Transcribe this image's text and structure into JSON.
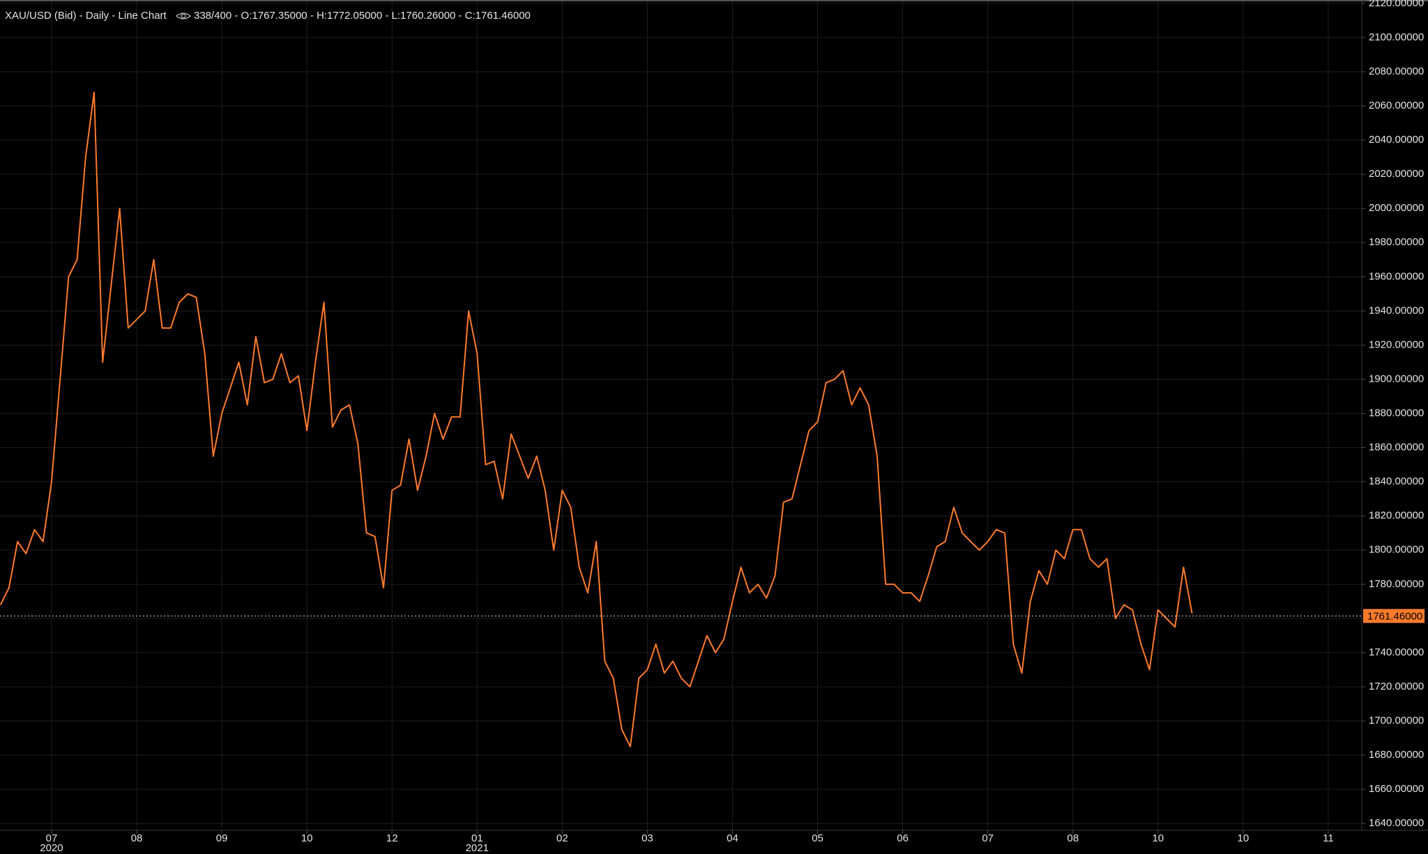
{
  "chart_data": {
    "type": "line",
    "title": "XAU/USD (Bid) - Daily - Line Chart",
    "info": "338/400 - O:1767.35000 - H:1772.05000 - L:1760.26000 - C:1761.46000",
    "color": "#ff7b2b",
    "grid": true,
    "categories": [
      null,
      null,
      null,
      null,
      null,
      null,
      "07",
      null,
      null,
      null,
      null,
      null,
      null,
      null,
      null,
      null,
      "08",
      null,
      null,
      null,
      null,
      null,
      null,
      null,
      null,
      null,
      "09",
      null,
      null,
      null,
      null,
      null,
      null,
      null,
      null,
      null,
      "10",
      null,
      null,
      null,
      null,
      null,
      null,
      null,
      null,
      null,
      "12",
      null,
      null,
      null,
      null,
      null,
      null,
      null,
      null,
      null,
      "01",
      null,
      null,
      null,
      null,
      null,
      null,
      null,
      null,
      null,
      "02",
      null,
      null,
      null,
      null,
      null,
      null,
      null,
      null,
      null,
      "03",
      null,
      null,
      null,
      null,
      null,
      null,
      null,
      null,
      null,
      "04",
      null,
      null,
      null,
      null,
      null,
      null,
      null,
      null,
      null,
      "05",
      null,
      null,
      null,
      null,
      null,
      null,
      null,
      null,
      null,
      "06",
      null,
      null,
      null,
      null,
      null,
      null,
      null,
      null,
      null,
      "07",
      null,
      null,
      null,
      null,
      null,
      null,
      null,
      null,
      null,
      "08",
      null,
      null,
      null,
      null,
      null,
      null,
      null,
      null,
      null,
      "10",
      null,
      null,
      null,
      null,
      null,
      null,
      null,
      null,
      null,
      "10",
      null,
      null,
      null,
      null,
      null,
      null,
      null,
      null,
      null,
      "11",
      null,
      null,
      null
    ],
    "years": [
      null,
      null,
      null,
      null,
      null,
      null,
      "2020",
      null,
      null,
      null,
      null,
      null,
      null,
      null,
      null,
      null,
      null,
      null,
      null,
      null,
      null,
      null,
      null,
      null,
      null,
      null,
      null,
      null,
      null,
      null,
      null,
      null,
      null,
      null,
      null,
      null,
      null,
      null,
      null,
      null,
      null,
      null,
      null,
      null,
      null,
      null,
      null,
      null,
      null,
      null,
      null,
      null,
      null,
      null,
      null,
      null,
      "2021",
      null,
      null,
      null,
      null,
      null,
      null,
      null,
      null,
      null,
      null,
      null,
      null,
      null,
      null,
      null,
      null,
      null,
      null,
      null,
      null,
      null,
      null,
      null,
      null,
      null,
      null,
      null,
      null,
      null,
      null,
      null,
      null,
      null,
      null,
      null,
      null,
      null,
      null,
      null,
      null,
      null,
      null,
      null,
      null,
      null,
      null,
      null,
      null,
      null,
      null,
      null,
      null,
      null,
      null,
      null,
      null,
      null,
      null,
      null,
      null,
      null,
      null,
      null,
      null,
      null,
      null,
      null,
      null,
      null,
      null,
      null,
      null,
      null,
      null,
      null,
      null,
      null,
      null,
      null,
      null,
      null,
      null,
      null,
      null,
      null,
      null,
      null,
      null,
      null,
      null,
      null,
      null,
      null,
      null,
      null,
      null,
      null,
      null,
      null,
      null,
      null,
      null,
      null
    ],
    "values": [
      1768,
      1778,
      1805,
      1798,
      1812,
      1805,
      1840,
      1900,
      1960,
      1970,
      2030,
      2068,
      1910,
      1955,
      2000,
      1930,
      1935,
      1940,
      1970,
      1930,
      1930,
      1945,
      1950,
      1948,
      1915,
      1855,
      1880,
      1895,
      1910,
      1885,
      1925,
      1898,
      1900,
      1915,
      1898,
      1902,
      1870,
      1910,
      1945,
      1872,
      1882,
      1885,
      1862,
      1810,
      1808,
      1778,
      1835,
      1838,
      1865,
      1835,
      1855,
      1880,
      1865,
      1878,
      1878,
      1940,
      1915,
      1850,
      1852,
      1830,
      1868,
      1855,
      1842,
      1855,
      1835,
      1800,
      1835,
      1825,
      1790,
      1775,
      1805,
      1735,
      1725,
      1695,
      1685,
      1725,
      1730,
      1745,
      1728,
      1735,
      1725,
      1720,
      1735,
      1750,
      1740,
      1748,
      1770,
      1790,
      1775,
      1780,
      1772,
      1785,
      1828,
      1830,
      1850,
      1870,
      1875,
      1898,
      1900,
      1905,
      1885,
      1895,
      1885,
      1855,
      1780,
      1780,
      1775,
      1775,
      1770,
      1785,
      1802,
      1805,
      1825,
      1810,
      1805,
      1800,
      1805,
      1812,
      1810,
      1745,
      1728,
      1770,
      1788,
      1780,
      1800,
      1795,
      1812,
      1812,
      1795,
      1790,
      1795,
      1760,
      1768,
      1765,
      1745,
      1730,
      1765,
      1760,
      1755,
      1790,
      1763,
      null,
      null,
      null,
      null,
      null,
      null,
      null,
      null,
      null,
      null,
      null,
      null,
      null,
      null,
      null,
      null,
      null,
      null,
      null
    ],
    "last_price": {
      "value": 1761.46,
      "label": "1761.46000"
    },
    "ylim": [
      1636,
      2122
    ],
    "yticks": [
      {
        "value": 1640,
        "label": "1640.00000"
      },
      {
        "value": 1660,
        "label": "1660.00000"
      },
      {
        "value": 1680,
        "label": "1680.00000"
      },
      {
        "value": 1700,
        "label": "1700.00000"
      },
      {
        "value": 1720,
        "label": "1720.00000"
      },
      {
        "value": 1740,
        "label": "1740.00000"
      },
      {
        "value": 1760,
        "label": "1760.00000"
      },
      {
        "value": 1780,
        "label": "1780.00000"
      },
      {
        "value": 1800,
        "label": "1800.00000"
      },
      {
        "value": 1820,
        "label": "1820.00000"
      },
      {
        "value": 1840,
        "label": "1840.00000"
      },
      {
        "value": 1860,
        "label": "1860.00000"
      },
      {
        "value": 1880,
        "label": "1880.00000"
      },
      {
        "value": 1900,
        "label": "1900.00000"
      },
      {
        "value": 1920,
        "label": "1920.00000"
      },
      {
        "value": 1940,
        "label": "1940.00000"
      },
      {
        "value": 1960,
        "label": "1960.00000"
      },
      {
        "value": 1980,
        "label": "1980.00000"
      },
      {
        "value": 2000,
        "label": "2000.00000"
      },
      {
        "value": 2020,
        "label": "2020.00000"
      },
      {
        "value": 2040,
        "label": "2040.00000"
      },
      {
        "value": 2060,
        "label": "2060.00000"
      },
      {
        "value": 2080,
        "label": "2080.00000"
      },
      {
        "value": 2100,
        "label": "2100.00000"
      },
      {
        "value": 2120,
        "label": "2120.00000"
      }
    ]
  }
}
